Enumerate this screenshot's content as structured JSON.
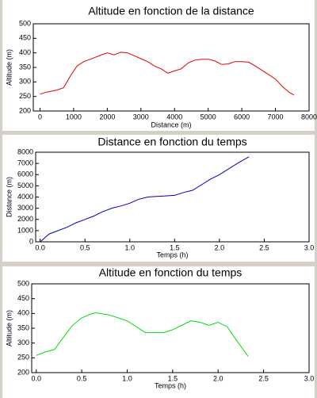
{
  "chart_data": [
    {
      "type": "line",
      "title": "Altitude en fonction de la distance",
      "xlabel": "Distance (m)",
      "ylabel": "Altitude (m)",
      "color": "#e00000",
      "x": [
        0,
        200,
        500,
        700,
        900,
        1100,
        1300,
        1500,
        1800,
        2000,
        2200,
        2400,
        2600,
        2800,
        3000,
        3200,
        3400,
        3600,
        3800,
        4000,
        4200,
        4400,
        4600,
        4800,
        5000,
        5200,
        5400,
        5600,
        5800,
        6000,
        6200,
        6400,
        6600,
        6800,
        7000,
        7200,
        7400,
        7550
      ],
      "values": [
        258,
        265,
        272,
        280,
        320,
        355,
        370,
        378,
        392,
        400,
        393,
        402,
        400,
        390,
        380,
        370,
        355,
        345,
        330,
        338,
        345,
        365,
        375,
        378,
        378,
        372,
        360,
        362,
        370,
        370,
        368,
        355,
        340,
        325,
        310,
        285,
        265,
        255
      ],
      "xlim": [
        -200,
        8000
      ],
      "xticks": [
        0,
        1000,
        2000,
        3000,
        4000,
        5000,
        6000,
        7000,
        8000
      ],
      "ylim": [
        200,
        500
      ],
      "yticks": [
        200,
        250,
        300,
        350,
        400,
        450,
        500
      ]
    },
    {
      "type": "line",
      "title": "Distance en fonction du temps",
      "xlabel": "Temps (h)",
      "ylabel": "Distance (m)",
      "color": "#0000c0",
      "x": [
        0,
        0.1,
        0.2,
        0.3,
        0.4,
        0.5,
        0.6,
        0.7,
        0.8,
        0.9,
        1.0,
        1.1,
        1.2,
        1.3,
        1.4,
        1.5,
        1.6,
        1.7,
        1.8,
        1.9,
        2.0,
        2.1,
        2.2,
        2.33
      ],
      "values": [
        0,
        700,
        1000,
        1300,
        1700,
        2000,
        2300,
        2700,
        3000,
        3200,
        3450,
        3800,
        4000,
        4050,
        4100,
        4150,
        4400,
        4600,
        5100,
        5600,
        6000,
        6500,
        7000,
        7600
      ],
      "xlim": [
        -0.05,
        3
      ],
      "xticks": [
        {
          "value": 0,
          "label": "0.0"
        },
        0.5,
        {
          "value": 1,
          "label": "1.0"
        },
        1.5,
        {
          "value": 2,
          "label": "2.0"
        },
        2.5,
        {
          "value": 3,
          "label": "3.0"
        }
      ],
      "ylim": [
        0,
        8000
      ],
      "yticks": [
        0,
        1000,
        2000,
        3000,
        4000,
        5000,
        6000,
        7000,
        8000
      ]
    },
    {
      "type": "line",
      "title": "Altitude en fonction du temps",
      "xlabel": "Temps (h)",
      "ylabel": "Altitude (m)",
      "color": "#00e000",
      "x": [
        0,
        0.1,
        0.2,
        0.3,
        0.4,
        0.5,
        0.6,
        0.65,
        0.7,
        0.8,
        0.9,
        1.0,
        1.1,
        1.2,
        1.3,
        1.4,
        1.5,
        1.6,
        1.7,
        1.8,
        1.9,
        2.0,
        2.1,
        2.2,
        2.33
      ],
      "values": [
        258,
        270,
        278,
        320,
        360,
        385,
        398,
        402,
        400,
        395,
        385,
        375,
        355,
        335,
        335,
        335,
        345,
        360,
        375,
        370,
        360,
        370,
        355,
        310,
        255
      ],
      "xlim": [
        -0.05,
        3
      ],
      "xticks": [
        {
          "value": 0,
          "label": "0.0"
        },
        0.5,
        {
          "value": 1,
          "label": "1.0"
        },
        1.5,
        {
          "value": 2,
          "label": "2.0"
        },
        2.5,
        {
          "value": 3,
          "label": "3.0"
        }
      ],
      "ylim": [
        200,
        500
      ],
      "yticks": [
        200,
        250,
        300,
        350,
        400,
        450,
        500
      ]
    }
  ]
}
